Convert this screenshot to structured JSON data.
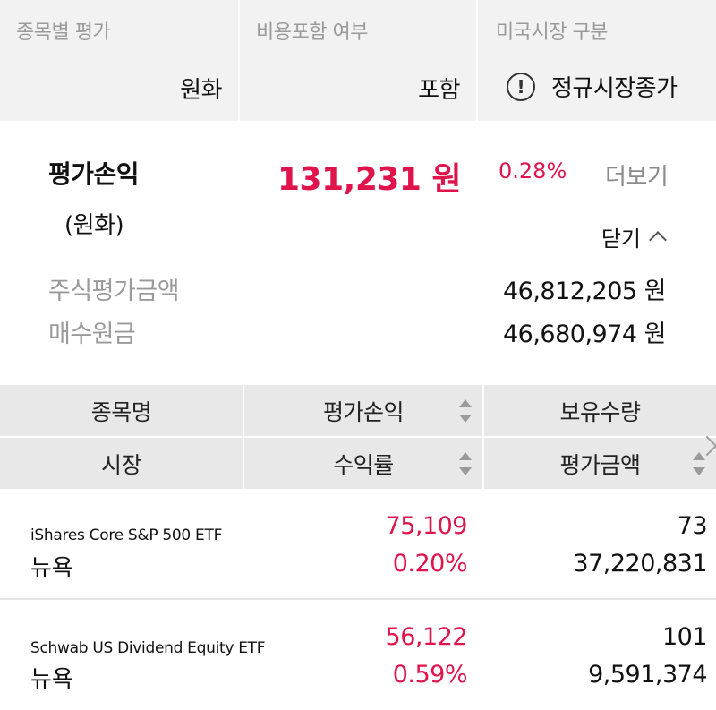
{
  "settings": {
    "eval_by_item": {
      "label": "종목별 평가",
      "value": "원화"
    },
    "include_fees": {
      "label": "비용포함 여부",
      "value": "포함"
    },
    "us_market": {
      "label": "미국시장 구분",
      "value": "정규시장종가",
      "icon": "info-icon"
    }
  },
  "summary": {
    "title": "평가손익",
    "subtitle": "(원화)",
    "amount": "131,231 원",
    "rate": "0.28%",
    "more_label": "더보기",
    "close_label": "닫기",
    "stock_eval_label": "주식평가금액",
    "stock_eval_value": "46,812,205 원",
    "principal_label": "매수원금",
    "principal_value": "46,680,974 원",
    "accent_color": "#e0144c"
  },
  "table": {
    "headers_top": [
      "종목명",
      "평가손익",
      "보유수량"
    ],
    "headers_bottom": [
      "시장",
      "수익률",
      "평가금액"
    ],
    "rows": [
      {
        "name": "iShares Core S&P 500 ETF",
        "market": "뉴욕",
        "profit": "75,109",
        "rate": "0.20%",
        "quantity": "73",
        "eval_amount": "37,220,831"
      },
      {
        "name": "Schwab US Dividend Equity ETF",
        "market": "뉴욕",
        "profit": "56,122",
        "rate": "0.59%",
        "quantity": "101",
        "eval_amount": "9,591,374"
      }
    ]
  }
}
